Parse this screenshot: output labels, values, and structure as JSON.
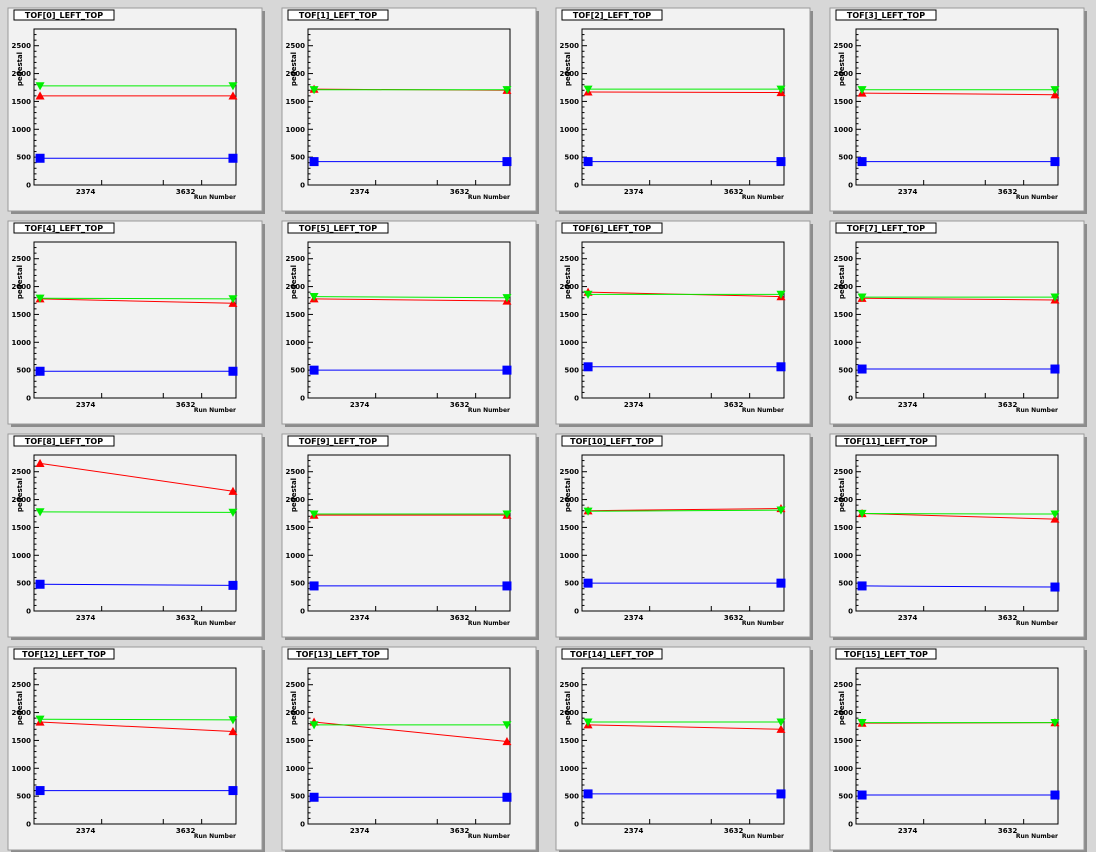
{
  "chart_data": [
    {
      "type": "line",
      "title": "TOF[0]_LEFT_TOP",
      "xlabel": "Run Number",
      "ylabel": "pedestal",
      "x_ticks": [
        "2374",
        "3632"
      ],
      "ylim": [
        0,
        2800
      ],
      "y_ticks": [
        0,
        500,
        1000,
        1500,
        2000,
        2500
      ],
      "series": [
        {
          "color": "#ff0000",
          "marker": "triangle-up",
          "values": [
            1600,
            1600
          ]
        },
        {
          "color": "#00ee00",
          "marker": "triangle-down",
          "values": [
            1780,
            1780
          ]
        },
        {
          "color": "#0000ff",
          "marker": "square",
          "values": [
            480,
            480
          ]
        }
      ]
    },
    {
      "type": "line",
      "title": "TOF[1]_LEFT_TOP",
      "xlabel": "Run Number",
      "ylabel": "pedestal",
      "x_ticks": [
        "2374",
        "3632"
      ],
      "ylim": [
        0,
        2800
      ],
      "y_ticks": [
        0,
        500,
        1000,
        1500,
        2000,
        2500
      ],
      "series": [
        {
          "color": "#ff0000",
          "marker": "triangle-up",
          "values": [
            1720,
            1700
          ]
        },
        {
          "color": "#00ee00",
          "marker": "triangle-down",
          "values": [
            1710,
            1710
          ]
        },
        {
          "color": "#0000ff",
          "marker": "square",
          "values": [
            420,
            420
          ]
        }
      ]
    },
    {
      "type": "line",
      "title": "TOF[2]_LEFT_TOP",
      "xlabel": "Run Number",
      "ylabel": "pedestal",
      "x_ticks": [
        "2374",
        "3632"
      ],
      "ylim": [
        0,
        2800
      ],
      "y_ticks": [
        0,
        500,
        1000,
        1500,
        2000,
        2500
      ],
      "series": [
        {
          "color": "#ff0000",
          "marker": "triangle-up",
          "values": [
            1670,
            1660
          ]
        },
        {
          "color": "#00ee00",
          "marker": "triangle-down",
          "values": [
            1720,
            1720
          ]
        },
        {
          "color": "#0000ff",
          "marker": "square",
          "values": [
            420,
            420
          ]
        }
      ]
    },
    {
      "type": "line",
      "title": "TOF[3]_LEFT_TOP",
      "xlabel": "Run Number",
      "ylabel": "pedestal",
      "x_ticks": [
        "2374",
        "3632"
      ],
      "ylim": [
        0,
        2800
      ],
      "y_ticks": [
        0,
        500,
        1000,
        1500,
        2000,
        2500
      ],
      "series": [
        {
          "color": "#ff0000",
          "marker": "triangle-up",
          "values": [
            1650,
            1620
          ]
        },
        {
          "color": "#00ee00",
          "marker": "triangle-down",
          "values": [
            1710,
            1710
          ]
        },
        {
          "color": "#0000ff",
          "marker": "square",
          "values": [
            420,
            420
          ]
        }
      ]
    },
    {
      "type": "line",
      "title": "TOF[4]_LEFT_TOP",
      "xlabel": "Run Number",
      "ylabel": "pedestal",
      "x_ticks": [
        "2374",
        "3632"
      ],
      "ylim": [
        0,
        2800
      ],
      "y_ticks": [
        0,
        500,
        1000,
        1500,
        2000,
        2500
      ],
      "series": [
        {
          "color": "#ff0000",
          "marker": "triangle-up",
          "values": [
            1780,
            1700
          ]
        },
        {
          "color": "#00ee00",
          "marker": "triangle-down",
          "values": [
            1790,
            1780
          ]
        },
        {
          "color": "#0000ff",
          "marker": "square",
          "values": [
            480,
            480
          ]
        }
      ]
    },
    {
      "type": "line",
      "title": "TOF[5]_LEFT_TOP",
      "xlabel": "Run Number",
      "ylabel": "pedestal",
      "x_ticks": [
        "2374",
        "3632"
      ],
      "ylim": [
        0,
        2800
      ],
      "y_ticks": [
        0,
        500,
        1000,
        1500,
        2000,
        2500
      ],
      "series": [
        {
          "color": "#ff0000",
          "marker": "triangle-up",
          "values": [
            1780,
            1740
          ]
        },
        {
          "color": "#00ee00",
          "marker": "triangle-down",
          "values": [
            1820,
            1800
          ]
        },
        {
          "color": "#0000ff",
          "marker": "square",
          "values": [
            500,
            500
          ]
        }
      ]
    },
    {
      "type": "line",
      "title": "TOF[6]_LEFT_TOP",
      "xlabel": "Run Number",
      "ylabel": "pedestal",
      "x_ticks": [
        "2374",
        "3632"
      ],
      "ylim": [
        0,
        2800
      ],
      "y_ticks": [
        0,
        500,
        1000,
        1500,
        2000,
        2500
      ],
      "series": [
        {
          "color": "#ff0000",
          "marker": "triangle-up",
          "values": [
            1900,
            1820
          ]
        },
        {
          "color": "#00ee00",
          "marker": "triangle-down",
          "values": [
            1860,
            1860
          ]
        },
        {
          "color": "#0000ff",
          "marker": "square",
          "values": [
            560,
            560
          ]
        }
      ]
    },
    {
      "type": "line",
      "title": "TOF[7]_LEFT_TOP",
      "xlabel": "Run Number",
      "ylabel": "pedestal",
      "x_ticks": [
        "2374",
        "3632"
      ],
      "ylim": [
        0,
        2800
      ],
      "y_ticks": [
        0,
        500,
        1000,
        1500,
        2000,
        2500
      ],
      "series": [
        {
          "color": "#ff0000",
          "marker": "triangle-up",
          "values": [
            1790,
            1760
          ]
        },
        {
          "color": "#00ee00",
          "marker": "triangle-down",
          "values": [
            1810,
            1810
          ]
        },
        {
          "color": "#0000ff",
          "marker": "square",
          "values": [
            520,
            520
          ]
        }
      ]
    },
    {
      "type": "line",
      "title": "TOF[8]_LEFT_TOP",
      "xlabel": "Run Number",
      "ylabel": "pedestal",
      "x_ticks": [
        "2374",
        "3632"
      ],
      "ylim": [
        0,
        2800
      ],
      "y_ticks": [
        0,
        500,
        1000,
        1500,
        2000,
        2500
      ],
      "series": [
        {
          "color": "#ff0000",
          "marker": "triangle-up",
          "values": [
            2650,
            2150
          ]
        },
        {
          "color": "#00ee00",
          "marker": "triangle-down",
          "values": [
            1780,
            1770
          ]
        },
        {
          "color": "#0000ff",
          "marker": "square",
          "values": [
            480,
            460
          ]
        }
      ]
    },
    {
      "type": "line",
      "title": "TOF[9]_LEFT_TOP",
      "xlabel": "Run Number",
      "ylabel": "pedestal",
      "x_ticks": [
        "2374",
        "3632"
      ],
      "ylim": [
        0,
        2800
      ],
      "y_ticks": [
        0,
        500,
        1000,
        1500,
        2000,
        2500
      ],
      "series": [
        {
          "color": "#ff0000",
          "marker": "triangle-up",
          "values": [
            1720,
            1720
          ]
        },
        {
          "color": "#00ee00",
          "marker": "triangle-down",
          "values": [
            1740,
            1740
          ]
        },
        {
          "color": "#0000ff",
          "marker": "square",
          "values": [
            450,
            450
          ]
        }
      ]
    },
    {
      "type": "line",
      "title": "TOF[10]_LEFT_TOP",
      "xlabel": "Run Number",
      "ylabel": "pedestal",
      "x_ticks": [
        "2374",
        "3632"
      ],
      "ylim": [
        0,
        2800
      ],
      "y_ticks": [
        0,
        500,
        1000,
        1500,
        2000,
        2500
      ],
      "series": [
        {
          "color": "#ff0000",
          "marker": "triangle-up",
          "values": [
            1800,
            1840
          ]
        },
        {
          "color": "#00ee00",
          "marker": "triangle-down",
          "values": [
            1790,
            1810
          ]
        },
        {
          "color": "#0000ff",
          "marker": "square",
          "values": [
            500,
            500
          ]
        }
      ]
    },
    {
      "type": "line",
      "title": "TOF[11]_LEFT_TOP",
      "xlabel": "Run Number",
      "ylabel": "pedestal",
      "x_ticks": [
        "2374",
        "3632"
      ],
      "ylim": [
        0,
        2800
      ],
      "y_ticks": [
        0,
        500,
        1000,
        1500,
        2000,
        2500
      ],
      "series": [
        {
          "color": "#ff0000",
          "marker": "triangle-up",
          "values": [
            1750,
            1650
          ]
        },
        {
          "color": "#00ee00",
          "marker": "triangle-down",
          "values": [
            1750,
            1740
          ]
        },
        {
          "color": "#0000ff",
          "marker": "square",
          "values": [
            450,
            430
          ]
        }
      ]
    },
    {
      "type": "line",
      "title": "TOF[12]_LEFT_TOP",
      "xlabel": "Run Number",
      "ylabel": "pedestal",
      "x_ticks": [
        "2374",
        "3632"
      ],
      "ylim": [
        0,
        2800
      ],
      "y_ticks": [
        0,
        500,
        1000,
        1500,
        2000,
        2500
      ],
      "series": [
        {
          "color": "#ff0000",
          "marker": "triangle-up",
          "values": [
            1830,
            1660
          ]
        },
        {
          "color": "#00ee00",
          "marker": "triangle-down",
          "values": [
            1880,
            1870
          ]
        },
        {
          "color": "#0000ff",
          "marker": "square",
          "values": [
            600,
            600
          ]
        }
      ]
    },
    {
      "type": "line",
      "title": "TOF[13]_LEFT_TOP",
      "xlabel": "Run Number",
      "ylabel": "pedestal",
      "x_ticks": [
        "2374",
        "3632"
      ],
      "ylim": [
        0,
        2800
      ],
      "y_ticks": [
        0,
        500,
        1000,
        1500,
        2000,
        2500
      ],
      "series": [
        {
          "color": "#ff0000",
          "marker": "triangle-up",
          "values": [
            1830,
            1480
          ]
        },
        {
          "color": "#00ee00",
          "marker": "triangle-down",
          "values": [
            1780,
            1780
          ]
        },
        {
          "color": "#0000ff",
          "marker": "square",
          "values": [
            480,
            480
          ]
        }
      ]
    },
    {
      "type": "line",
      "title": "TOF[14]_LEFT_TOP",
      "xlabel": "Run Number",
      "ylabel": "pedestal",
      "x_ticks": [
        "2374",
        "3632"
      ],
      "ylim": [
        0,
        2800
      ],
      "y_ticks": [
        0,
        500,
        1000,
        1500,
        2000,
        2500
      ],
      "series": [
        {
          "color": "#ff0000",
          "marker": "triangle-up",
          "values": [
            1780,
            1700
          ]
        },
        {
          "color": "#00ee00",
          "marker": "triangle-down",
          "values": [
            1830,
            1830
          ]
        },
        {
          "color": "#0000ff",
          "marker": "square",
          "values": [
            540,
            540
          ]
        }
      ]
    },
    {
      "type": "line",
      "title": "TOF[15]_LEFT_TOP",
      "xlabel": "Run Number",
      "ylabel": "pedestal",
      "x_ticks": [
        "2374",
        "3632"
      ],
      "ylim": [
        0,
        2800
      ],
      "y_ticks": [
        0,
        500,
        1000,
        1500,
        2000,
        2500
      ],
      "series": [
        {
          "color": "#ff0000",
          "marker": "triangle-up",
          "values": [
            1810,
            1820
          ]
        },
        {
          "color": "#00ee00",
          "marker": "triangle-down",
          "values": [
            1820,
            1820
          ]
        },
        {
          "color": "#0000ff",
          "marker": "square",
          "values": [
            520,
            520
          ]
        }
      ]
    }
  ]
}
